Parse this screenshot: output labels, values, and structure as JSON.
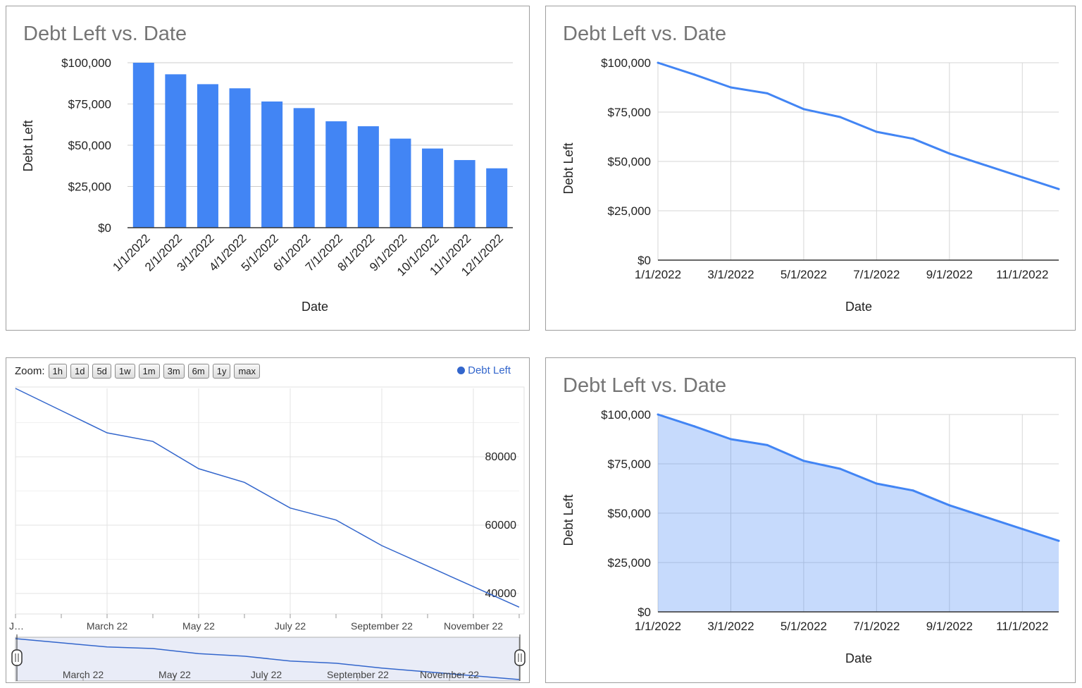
{
  "chart_data": [
    {
      "type": "bar",
      "title": "Debt Left vs. Date",
      "xlabel": "Date",
      "ylabel": "Debt Left",
      "categories": [
        "1/1/2022",
        "2/1/2022",
        "3/1/2022",
        "4/1/2022",
        "5/1/2022",
        "6/1/2022",
        "7/1/2022",
        "8/1/2022",
        "9/1/2022",
        "10/1/2022",
        "11/1/2022",
        "12/1/2022"
      ],
      "values": [
        100000,
        93000,
        87000,
        84500,
        76500,
        72500,
        64500,
        61500,
        54000,
        48000,
        41000,
        36000
      ],
      "ylim": [
        0,
        100000
      ],
      "yticks": [
        "$0",
        "$25,000",
        "$50,000",
        "$75,000",
        "$100,000"
      ],
      "color": "#4285f4",
      "grid": true
    },
    {
      "type": "line",
      "title": "Debt Left vs. Date",
      "xlabel": "Date",
      "ylabel": "Debt Left",
      "x": [
        "1/1/2022",
        "2/1/2022",
        "3/1/2022",
        "4/1/2022",
        "5/1/2022",
        "6/1/2022",
        "7/1/2022",
        "8/1/2022",
        "9/1/2022",
        "10/1/2022",
        "11/1/2022",
        "12/1/2022"
      ],
      "values": [
        100000,
        94000,
        87500,
        84500,
        76500,
        72500,
        65000,
        61500,
        54000,
        48000,
        42000,
        36000
      ],
      "ylim": [
        0,
        100000
      ],
      "yticks": [
        "$0",
        "$25,000",
        "$50,000",
        "$75,000",
        "$100,000"
      ],
      "xticks": [
        "1/1/2022",
        "3/1/2022",
        "5/1/2022",
        "7/1/2022",
        "9/1/2022",
        "11/1/2022"
      ],
      "color": "#4285f4",
      "grid": true
    },
    {
      "type": "line",
      "legend": [
        "Debt Left"
      ],
      "zoom_label": "Zoom:",
      "zoom_buttons": [
        "1h",
        "1d",
        "5d",
        "1w",
        "1m",
        "3m",
        "6m",
        "1y",
        "max"
      ],
      "x": [
        "1/1/2022",
        "2/1/2022",
        "3/1/2022",
        "4/1/2022",
        "5/1/2022",
        "6/1/2022",
        "7/1/2022",
        "8/1/2022",
        "9/1/2022",
        "10/1/2022",
        "11/1/2022",
        "12/1/2022"
      ],
      "values": [
        100000,
        93500,
        87000,
        84500,
        76500,
        72500,
        65000,
        61500,
        54000,
        48000,
        42000,
        36000
      ],
      "ylim": [
        34000,
        100000
      ],
      "yticks": [
        "40000",
        "60000",
        "80000"
      ],
      "xticks": [
        "J…",
        "March 22",
        "May 22",
        "July 22",
        "September 22",
        "November 22"
      ],
      "navigator_ticks": [
        "March 22",
        "May 22",
        "July 22",
        "September 22",
        "November 22"
      ],
      "color": "#3366cc"
    },
    {
      "type": "area",
      "title": "Debt Left vs. Date",
      "xlabel": "Date",
      "ylabel": "Debt Left",
      "x": [
        "1/1/2022",
        "2/1/2022",
        "3/1/2022",
        "4/1/2022",
        "5/1/2022",
        "6/1/2022",
        "7/1/2022",
        "8/1/2022",
        "9/1/2022",
        "10/1/2022",
        "11/1/2022",
        "12/1/2022"
      ],
      "values": [
        100000,
        94000,
        87500,
        84500,
        76500,
        72500,
        65000,
        61500,
        54000,
        48000,
        42000,
        36000
      ],
      "ylim": [
        0,
        100000
      ],
      "yticks": [
        "$0",
        "$25,000",
        "$50,000",
        "$75,000",
        "$100,000"
      ],
      "xticks": [
        "1/1/2022",
        "3/1/2022",
        "5/1/2022",
        "7/1/2022",
        "9/1/2022",
        "11/1/2022"
      ],
      "color": "#4285f4",
      "grid": true
    }
  ]
}
